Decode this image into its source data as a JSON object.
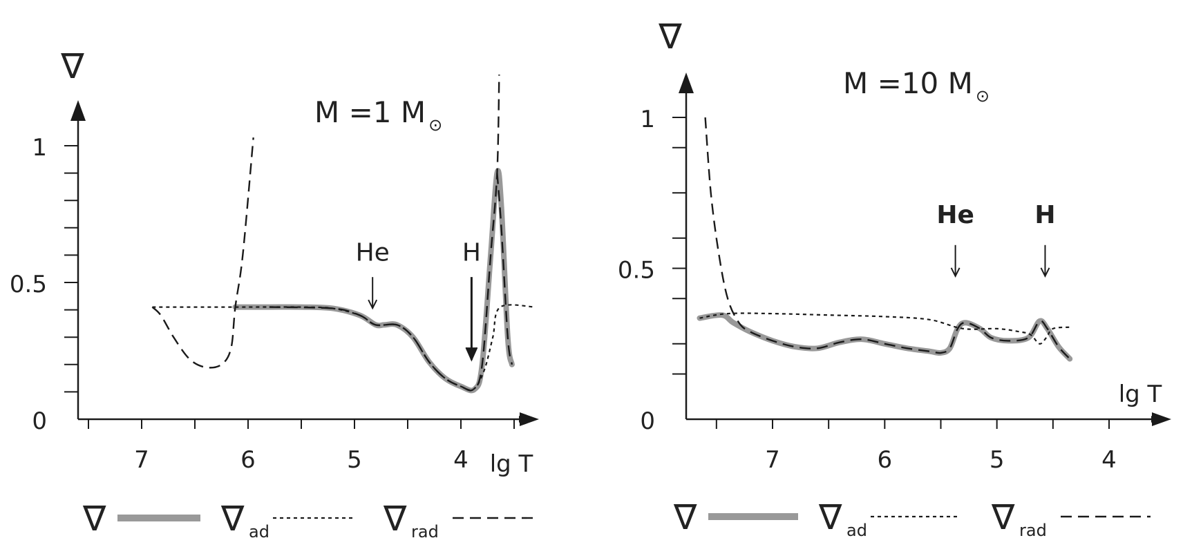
{
  "chart_data": [
    {
      "type": "line",
      "title": "M =1 M",
      "title_symbol": "⊙",
      "ylabel": "∇",
      "xlabel": "lg T",
      "x_reversed": true,
      "xlim": [
        7.55,
        3.3
      ],
      "ylim": [
        0,
        1.1
      ],
      "xticks": [
        7,
        6,
        5,
        4
      ],
      "xtick_labels": [
        "7",
        "6",
        "5",
        "4"
      ],
      "yticks": [
        0,
        0.5,
        1
      ],
      "ytick_labels": [
        "0",
        "0.5",
        "1"
      ],
      "yminor": [
        0.1,
        0.2,
        0.3,
        0.4,
        0.6,
        0.7,
        0.8,
        0.9
      ],
      "series": [
        {
          "key": "nabla",
          "style": "thick-gray",
          "points": [
            [
              6.12,
              0.41
            ],
            [
              6.05,
              0.41
            ],
            [
              5.8,
              0.41
            ],
            [
              5.5,
              0.41
            ],
            [
              5.2,
              0.405
            ],
            [
              4.95,
              0.38
            ],
            [
              4.8,
              0.345
            ],
            [
              4.72,
              0.345
            ],
            [
              4.6,
              0.345
            ],
            [
              4.45,
              0.3
            ],
            [
              4.3,
              0.21
            ],
            [
              4.15,
              0.15
            ],
            [
              4.0,
              0.12
            ],
            [
              3.87,
              0.11
            ],
            [
              3.8,
              0.2
            ],
            [
              3.72,
              0.6
            ],
            [
              3.66,
              0.9
            ],
            [
              3.62,
              0.78
            ],
            [
              3.56,
              0.3
            ],
            [
              3.52,
              0.2
            ]
          ]
        },
        {
          "key": "nabla_ad",
          "style": "dotted",
          "points": [
            [
              6.9,
              0.41
            ],
            [
              6.5,
              0.41
            ],
            [
              6.1,
              0.41
            ],
            [
              5.5,
              0.41
            ],
            [
              5.2,
              0.405
            ],
            [
              4.95,
              0.38
            ],
            [
              4.8,
              0.345
            ],
            [
              4.6,
              0.345
            ],
            [
              4.45,
              0.3
            ],
            [
              4.3,
              0.21
            ],
            [
              4.15,
              0.15
            ],
            [
              4.0,
              0.12
            ],
            [
              3.88,
              0.11
            ],
            [
              3.78,
              0.18
            ],
            [
              3.7,
              0.3
            ],
            [
              3.63,
              0.41
            ],
            [
              3.3,
              0.41
            ]
          ]
        },
        {
          "key": "nabla_rad",
          "style": "dashed",
          "points": [
            [
              6.9,
              0.41
            ],
            [
              6.82,
              0.38
            ],
            [
              6.7,
              0.3
            ],
            [
              6.55,
              0.22
            ],
            [
              6.4,
              0.19
            ],
            [
              6.25,
              0.2
            ],
            [
              6.16,
              0.26
            ],
            [
              6.12,
              0.41
            ],
            [
              6.05,
              0.6
            ],
            [
              5.95,
              1.03
            ]
          ]
        },
        {
          "key": "nabla_rad_2",
          "style": "dashed",
          "points": [
            [
              5.8,
              0.41
            ],
            [
              5.2,
              0.405
            ],
            [
              4.95,
              0.38
            ],
            [
              4.8,
              0.345
            ],
            [
              4.6,
              0.345
            ],
            [
              4.45,
              0.3
            ],
            [
              4.3,
              0.21
            ],
            [
              4.15,
              0.15
            ],
            [
              4.0,
              0.12
            ],
            [
              3.88,
              0.11
            ],
            [
              3.8,
              0.2
            ],
            [
              3.72,
              0.6
            ],
            [
              3.66,
              0.9
            ],
            [
              3.64,
              1.26
            ]
          ]
        },
        {
          "key": "nabla_rad_3",
          "style": "dashed",
          "points": [
            [
              3.66,
              0.9
            ],
            [
              3.62,
              0.7
            ],
            [
              3.56,
              0.3
            ],
            [
              3.52,
              0.2
            ]
          ]
        }
      ],
      "markers": [
        {
          "label": "He",
          "x": 4.83,
          "y_top": 0.545,
          "y_text": 0.58,
          "bold": false,
          "big": false
        },
        {
          "label": "H",
          "x": 3.9,
          "y_top": 0.545,
          "y_text": 0.58,
          "bold": false,
          "big": true
        }
      ],
      "legend": {
        "placement": "bottom",
        "items": [
          {
            "symbol": "∇",
            "sub": "",
            "style": "thick-gray"
          },
          {
            "symbol": "∇",
            "sub": "ad",
            "style": "dotted"
          },
          {
            "symbol": "∇",
            "sub": "rad",
            "style": "dashed"
          }
        ]
      }
    },
    {
      "type": "line",
      "title": "M =10 M",
      "title_symbol": "⊙",
      "ylabel": "∇",
      "xlabel": "lg T",
      "x_reversed": true,
      "xlim": [
        7.95,
        3.6
      ],
      "ylim": [
        0,
        1.15
      ],
      "xticks": [
        7,
        6,
        5,
        4
      ],
      "xtick_labels": [
        "7",
        "6",
        "5",
        "4"
      ],
      "yticks": [
        0,
        0.5,
        1
      ],
      "ytick_labels": [
        "0",
        "0.5",
        "1"
      ],
      "yminor": [
        0.15,
        0.25,
        0.4,
        0.6,
        0.75,
        0.9
      ],
      "series": [
        {
          "key": "nabla",
          "style": "thick-gray",
          "points": [
            [
              7.65,
              0.335
            ],
            [
              7.45,
              0.345
            ],
            [
              7.35,
              0.32
            ],
            [
              7.2,
              0.29
            ],
            [
              7.0,
              0.26
            ],
            [
              6.8,
              0.24
            ],
            [
              6.6,
              0.235
            ],
            [
              6.4,
              0.255
            ],
            [
              6.2,
              0.265
            ],
            [
              6.0,
              0.25
            ],
            [
              5.8,
              0.235
            ],
            [
              5.6,
              0.225
            ],
            [
              5.5,
              0.22
            ],
            [
              5.42,
              0.235
            ],
            [
              5.35,
              0.3
            ],
            [
              5.28,
              0.32
            ],
            [
              5.15,
              0.3
            ],
            [
              5.05,
              0.27
            ],
            [
              4.9,
              0.26
            ],
            [
              4.72,
              0.27
            ],
            [
              4.62,
              0.325
            ],
            [
              4.55,
              0.3
            ],
            [
              4.45,
              0.24
            ],
            [
              4.35,
              0.2
            ]
          ]
        },
        {
          "key": "nabla_ad",
          "style": "dotted",
          "points": [
            [
              7.65,
              0.335
            ],
            [
              7.4,
              0.35
            ],
            [
              7.0,
              0.35
            ],
            [
              6.5,
              0.345
            ],
            [
              6.0,
              0.34
            ],
            [
              5.6,
              0.33
            ],
            [
              5.3,
              0.3
            ],
            [
              5.0,
              0.3
            ],
            [
              4.8,
              0.29
            ],
            [
              4.7,
              0.28
            ],
            [
              4.62,
              0.25
            ],
            [
              4.56,
              0.27
            ],
            [
              4.5,
              0.3
            ],
            [
              4.35,
              0.305
            ]
          ]
        },
        {
          "key": "nabla_rad",
          "style": "dashed",
          "points": [
            [
              7.6,
              1.0
            ],
            [
              7.55,
              0.75
            ],
            [
              7.48,
              0.55
            ],
            [
              7.4,
              0.4
            ],
            [
              7.3,
              0.32
            ],
            [
              7.2,
              0.29
            ],
            [
              7.0,
              0.26
            ],
            [
              6.8,
              0.24
            ],
            [
              6.6,
              0.235
            ],
            [
              6.4,
              0.255
            ],
            [
              6.2,
              0.265
            ],
            [
              6.0,
              0.25
            ],
            [
              5.8,
              0.235
            ],
            [
              5.6,
              0.225
            ],
            [
              5.5,
              0.22
            ],
            [
              5.42,
              0.235
            ],
            [
              5.35,
              0.3
            ],
            [
              5.28,
              0.32
            ],
            [
              5.15,
              0.3
            ],
            [
              5.05,
              0.27
            ],
            [
              4.9,
              0.26
            ],
            [
              4.72,
              0.27
            ],
            [
              4.62,
              0.325
            ],
            [
              4.55,
              0.3
            ],
            [
              4.45,
              0.24
            ],
            [
              4.35,
              0.2
            ]
          ]
        }
      ],
      "markers": [
        {
          "label": "He",
          "x": 5.37,
          "y_top": 0.6,
          "y_text": 0.65,
          "bold": true,
          "big": false
        },
        {
          "label": "H",
          "x": 4.57,
          "y_top": 0.6,
          "y_text": 0.65,
          "bold": true,
          "big": false
        }
      ],
      "legend": {
        "placement": "bottom",
        "items": [
          {
            "symbol": "∇",
            "sub": "",
            "style": "thick-gray"
          },
          {
            "symbol": "∇",
            "sub": "ad",
            "style": "dotted"
          },
          {
            "symbol": "∇",
            "sub": "rad",
            "style": "dashed"
          }
        ]
      }
    }
  ],
  "colors": {
    "axis": "#1a1a1a",
    "nabla": "#999999",
    "lines": "#1a1a1a"
  }
}
